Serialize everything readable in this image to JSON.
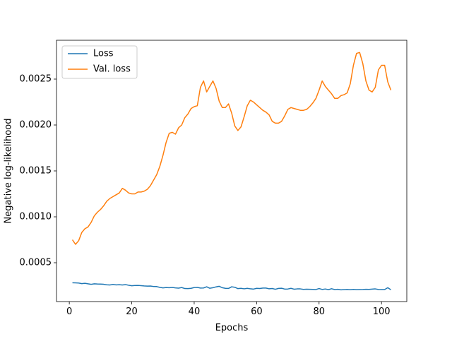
{
  "chart_data": {
    "type": "line",
    "xlabel": "Epochs",
    "ylabel": "Negative log-likelihood",
    "x": [
      1,
      2,
      3,
      4,
      5,
      6,
      7,
      8,
      9,
      10,
      11,
      12,
      13,
      14,
      15,
      16,
      17,
      18,
      19,
      20,
      21,
      22,
      23,
      24,
      25,
      26,
      27,
      28,
      29,
      30,
      31,
      32,
      33,
      34,
      35,
      36,
      37,
      38,
      39,
      40,
      41,
      42,
      43,
      44,
      45,
      46,
      47,
      48,
      49,
      50,
      51,
      52,
      53,
      54,
      55,
      56,
      57,
      58,
      59,
      60,
      61,
      62,
      63,
      64,
      65,
      66,
      67,
      68,
      69,
      70,
      71,
      72,
      73,
      74,
      75,
      76,
      77,
      78,
      79,
      80,
      81,
      82,
      83,
      84,
      85,
      86,
      87,
      88,
      89,
      90,
      91,
      92,
      93,
      94,
      95,
      96,
      97,
      98,
      99,
      100,
      101,
      102,
      103
    ],
    "series": [
      {
        "name": "Loss",
        "color": "#1f77b4",
        "values": [
          0.000282,
          0.000281,
          0.000279,
          0.000272,
          0.000276,
          0.00027,
          0.000265,
          0.00027,
          0.000268,
          0.000267,
          0.000265,
          0.00026,
          0.000258,
          0.000264,
          0.000259,
          0.000261,
          0.000258,
          0.000262,
          0.000255,
          0.000249,
          0.000252,
          0.000253,
          0.00025,
          0.000247,
          0.000245,
          0.000246,
          0.000241,
          0.00024,
          0.000232,
          0.000226,
          0.00023,
          0.000228,
          0.000231,
          0.000226,
          0.000223,
          0.00023,
          0.000219,
          0.000218,
          0.000221,
          0.00023,
          0.000232,
          0.000224,
          0.000225,
          0.000238,
          0.000222,
          0.000228,
          0.000237,
          0.000243,
          0.000228,
          0.000221,
          0.00022,
          0.000238,
          0.000233,
          0.000218,
          0.000221,
          0.000216,
          0.000221,
          0.000216,
          0.000213,
          0.000221,
          0.000219,
          0.000224,
          0.000224,
          0.000216,
          0.000219,
          0.000211,
          0.00022,
          0.000222,
          0.000213,
          0.000214,
          0.000221,
          0.000212,
          0.000215,
          0.000215,
          0.00021,
          0.000212,
          0.000211,
          0.00021,
          0.000208,
          0.000219,
          0.000209,
          0.000214,
          0.000207,
          0.000217,
          0.000208,
          0.000211,
          0.000205,
          0.000207,
          0.000209,
          0.000206,
          0.00021,
          0.000207,
          0.000208,
          0.000209,
          0.000211,
          0.00021,
          0.000213,
          0.000215,
          0.000209,
          0.000208,
          0.000208,
          0.000228,
          0.000206
        ]
      },
      {
        "name": "Val. loss",
        "color": "#ff7f0e",
        "values": [
          0.00075,
          0.0007,
          0.00074,
          0.00083,
          0.00087,
          0.00089,
          0.00094,
          0.00101,
          0.00105,
          0.00108,
          0.00112,
          0.00117,
          0.0012,
          0.00122,
          0.00124,
          0.00126,
          0.00131,
          0.00129,
          0.00126,
          0.00125,
          0.00125,
          0.00127,
          0.00127,
          0.00128,
          0.0013,
          0.00134,
          0.0014,
          0.00146,
          0.00155,
          0.00167,
          0.00181,
          0.00191,
          0.00192,
          0.0019,
          0.00197,
          0.002,
          0.00208,
          0.00212,
          0.00218,
          0.0022,
          0.00221,
          0.00241,
          0.00248,
          0.00236,
          0.00242,
          0.00248,
          0.0024,
          0.00226,
          0.00219,
          0.00219,
          0.00223,
          0.00213,
          0.00199,
          0.00194,
          0.00198,
          0.00209,
          0.00221,
          0.00227,
          0.00225,
          0.00222,
          0.00219,
          0.00216,
          0.00214,
          0.00211,
          0.00204,
          0.00202,
          0.00202,
          0.00204,
          0.0021,
          0.00217,
          0.00219,
          0.00218,
          0.00217,
          0.00216,
          0.00216,
          0.00217,
          0.0022,
          0.00224,
          0.00229,
          0.00238,
          0.00248,
          0.00242,
          0.00238,
          0.00234,
          0.00229,
          0.00229,
          0.00232,
          0.00233,
          0.00235,
          0.00245,
          0.00265,
          0.00278,
          0.00279,
          0.00267,
          0.00248,
          0.00238,
          0.00236,
          0.00241,
          0.0026,
          0.00265,
          0.00265,
          0.00247,
          0.00238
        ]
      }
    ],
    "xlim": [
      -4.1,
      108.1
    ],
    "xticks": [
      0,
      20,
      40,
      60,
      80,
      100
    ],
    "ylim": [
      7.7e-05,
      0.002923
    ],
    "yticks": [
      0.0005,
      {
        "value": 0.001,
        "label": "0.0010"
      },
      0.0015,
      {
        "value": 0.002,
        "label": "0.0020"
      },
      0.0025
    ],
    "grid": false,
    "legend": "upper left"
  }
}
